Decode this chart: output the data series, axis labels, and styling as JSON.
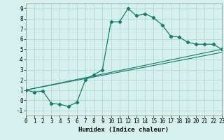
{
  "xlabel": "Humidex (Indice chaleur)",
  "background_color": "#d6f0ee",
  "grid_color": "#b8dcd8",
  "line_color": "#1a7a6e",
  "xlim": [
    0,
    23
  ],
  "ylim": [
    -1.5,
    9.5
  ],
  "xtick_labels": [
    "0",
    "1",
    "2",
    "3",
    "4",
    "5",
    "6",
    "7",
    "8",
    "9",
    "10",
    "11",
    "12",
    "13",
    "14",
    "15",
    "16",
    "17",
    "18",
    "19",
    "20",
    "21",
    "22",
    "23"
  ],
  "ytick_labels": [
    "-1",
    "0",
    "1",
    "2",
    "3",
    "4",
    "5",
    "6",
    "7",
    "8",
    "9"
  ],
  "ytick_vals": [
    -1,
    0,
    1,
    2,
    3,
    4,
    5,
    6,
    7,
    8,
    9
  ],
  "line1_x": [
    0,
    1,
    2,
    3,
    4,
    5,
    6,
    7,
    8,
    9,
    10,
    11,
    12,
    13,
    14,
    15,
    16,
    17,
    18,
    19,
    20,
    21,
    22,
    23
  ],
  "line1_y": [
    1,
    0.8,
    0.9,
    -0.3,
    -0.4,
    -0.6,
    -0.2,
    2.0,
    2.5,
    3.0,
    7.7,
    7.7,
    9.0,
    8.3,
    8.5,
    8.1,
    7.4,
    6.3,
    6.2,
    5.7,
    5.5,
    5.5,
    5.5,
    5.0
  ],
  "line2_x": [
    0,
    23
  ],
  "line2_y": [
    1,
    5.0
  ],
  "line3_x": [
    0,
    23
  ],
  "line3_y": [
    1,
    4.7
  ]
}
